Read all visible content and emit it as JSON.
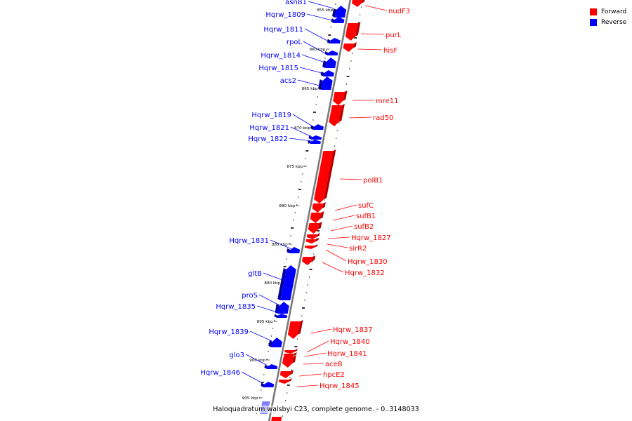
{
  "colors": {
    "forward": "#ff0000",
    "forward_dark": "#b80000",
    "reverse": "#0000ff",
    "reverse_dark": "#0000a0",
    "backbone": "#7a7a7a",
    "tick": "#000000",
    "faded_reverse": "#8080ff"
  },
  "legend": {
    "forward_label": "Forward",
    "reverse_label": "Reverse"
  },
  "caption": "Haloquadratum walsbyi C23, complete genome. - 0..3148033",
  "scale": {
    "unit_suffix": "kbp",
    "labels": [
      "855 kbp",
      "860 kbp",
      "865 kbp",
      "870 kbp",
      "875 kbp",
      "880 kbp",
      "885 kbp",
      "890 kbp",
      "895 kbp",
      "900 kbp",
      "905 kbp"
    ]
  },
  "genes": [
    {
      "name": "nudF3",
      "strand": "forward"
    },
    {
      "name": "asnB1",
      "strand": "reverse"
    },
    {
      "name": "Hqrw_1809",
      "strand": "reverse"
    },
    {
      "name": "purL",
      "strand": "forward"
    },
    {
      "name": "Hqrw_1811",
      "strand": "reverse"
    },
    {
      "name": "rpoL",
      "strand": "reverse"
    },
    {
      "name": "hisF",
      "strand": "forward"
    },
    {
      "name": "Hqrw_1814",
      "strand": "reverse"
    },
    {
      "name": "Hqrw_1815",
      "strand": "reverse"
    },
    {
      "name": "acs2",
      "strand": "reverse"
    },
    {
      "name": "mre11",
      "strand": "forward"
    },
    {
      "name": "rad50",
      "strand": "forward"
    },
    {
      "name": "Hqrw_1819",
      "strand": "reverse"
    },
    {
      "name": "Hqrw_1821",
      "strand": "reverse"
    },
    {
      "name": "Hqrw_1822",
      "strand": "reverse"
    },
    {
      "name": "polB1",
      "strand": "forward"
    },
    {
      "name": "sufC",
      "strand": "forward"
    },
    {
      "name": "sufB1",
      "strand": "forward"
    },
    {
      "name": "sufB2",
      "strand": "forward"
    },
    {
      "name": "Hqrw_1827",
      "strand": "forward"
    },
    {
      "name": "sirR2",
      "strand": "forward"
    },
    {
      "name": "Hqrw_1830",
      "strand": "forward"
    },
    {
      "name": "Hqrw_1832",
      "strand": "forward"
    },
    {
      "name": "Hqrw_1831",
      "strand": "reverse"
    },
    {
      "name": "gltB",
      "strand": "reverse"
    },
    {
      "name": "proS",
      "strand": "reverse"
    },
    {
      "name": "Hqrw_1835",
      "strand": "reverse"
    },
    {
      "name": "Hqrw_1837",
      "strand": "forward"
    },
    {
      "name": "Hqrw_1840",
      "strand": "forward"
    },
    {
      "name": "Hqrw_1841",
      "strand": "forward"
    },
    {
      "name": "aceB",
      "strand": "forward"
    },
    {
      "name": "Hqrw_1839",
      "strand": "reverse"
    },
    {
      "name": "glo3",
      "strand": "reverse"
    },
    {
      "name": "hpcE2",
      "strand": "forward"
    },
    {
      "name": "Hqrw_1846",
      "strand": "reverse"
    },
    {
      "name": "Hqrw_1845",
      "strand": "forward"
    }
  ]
}
